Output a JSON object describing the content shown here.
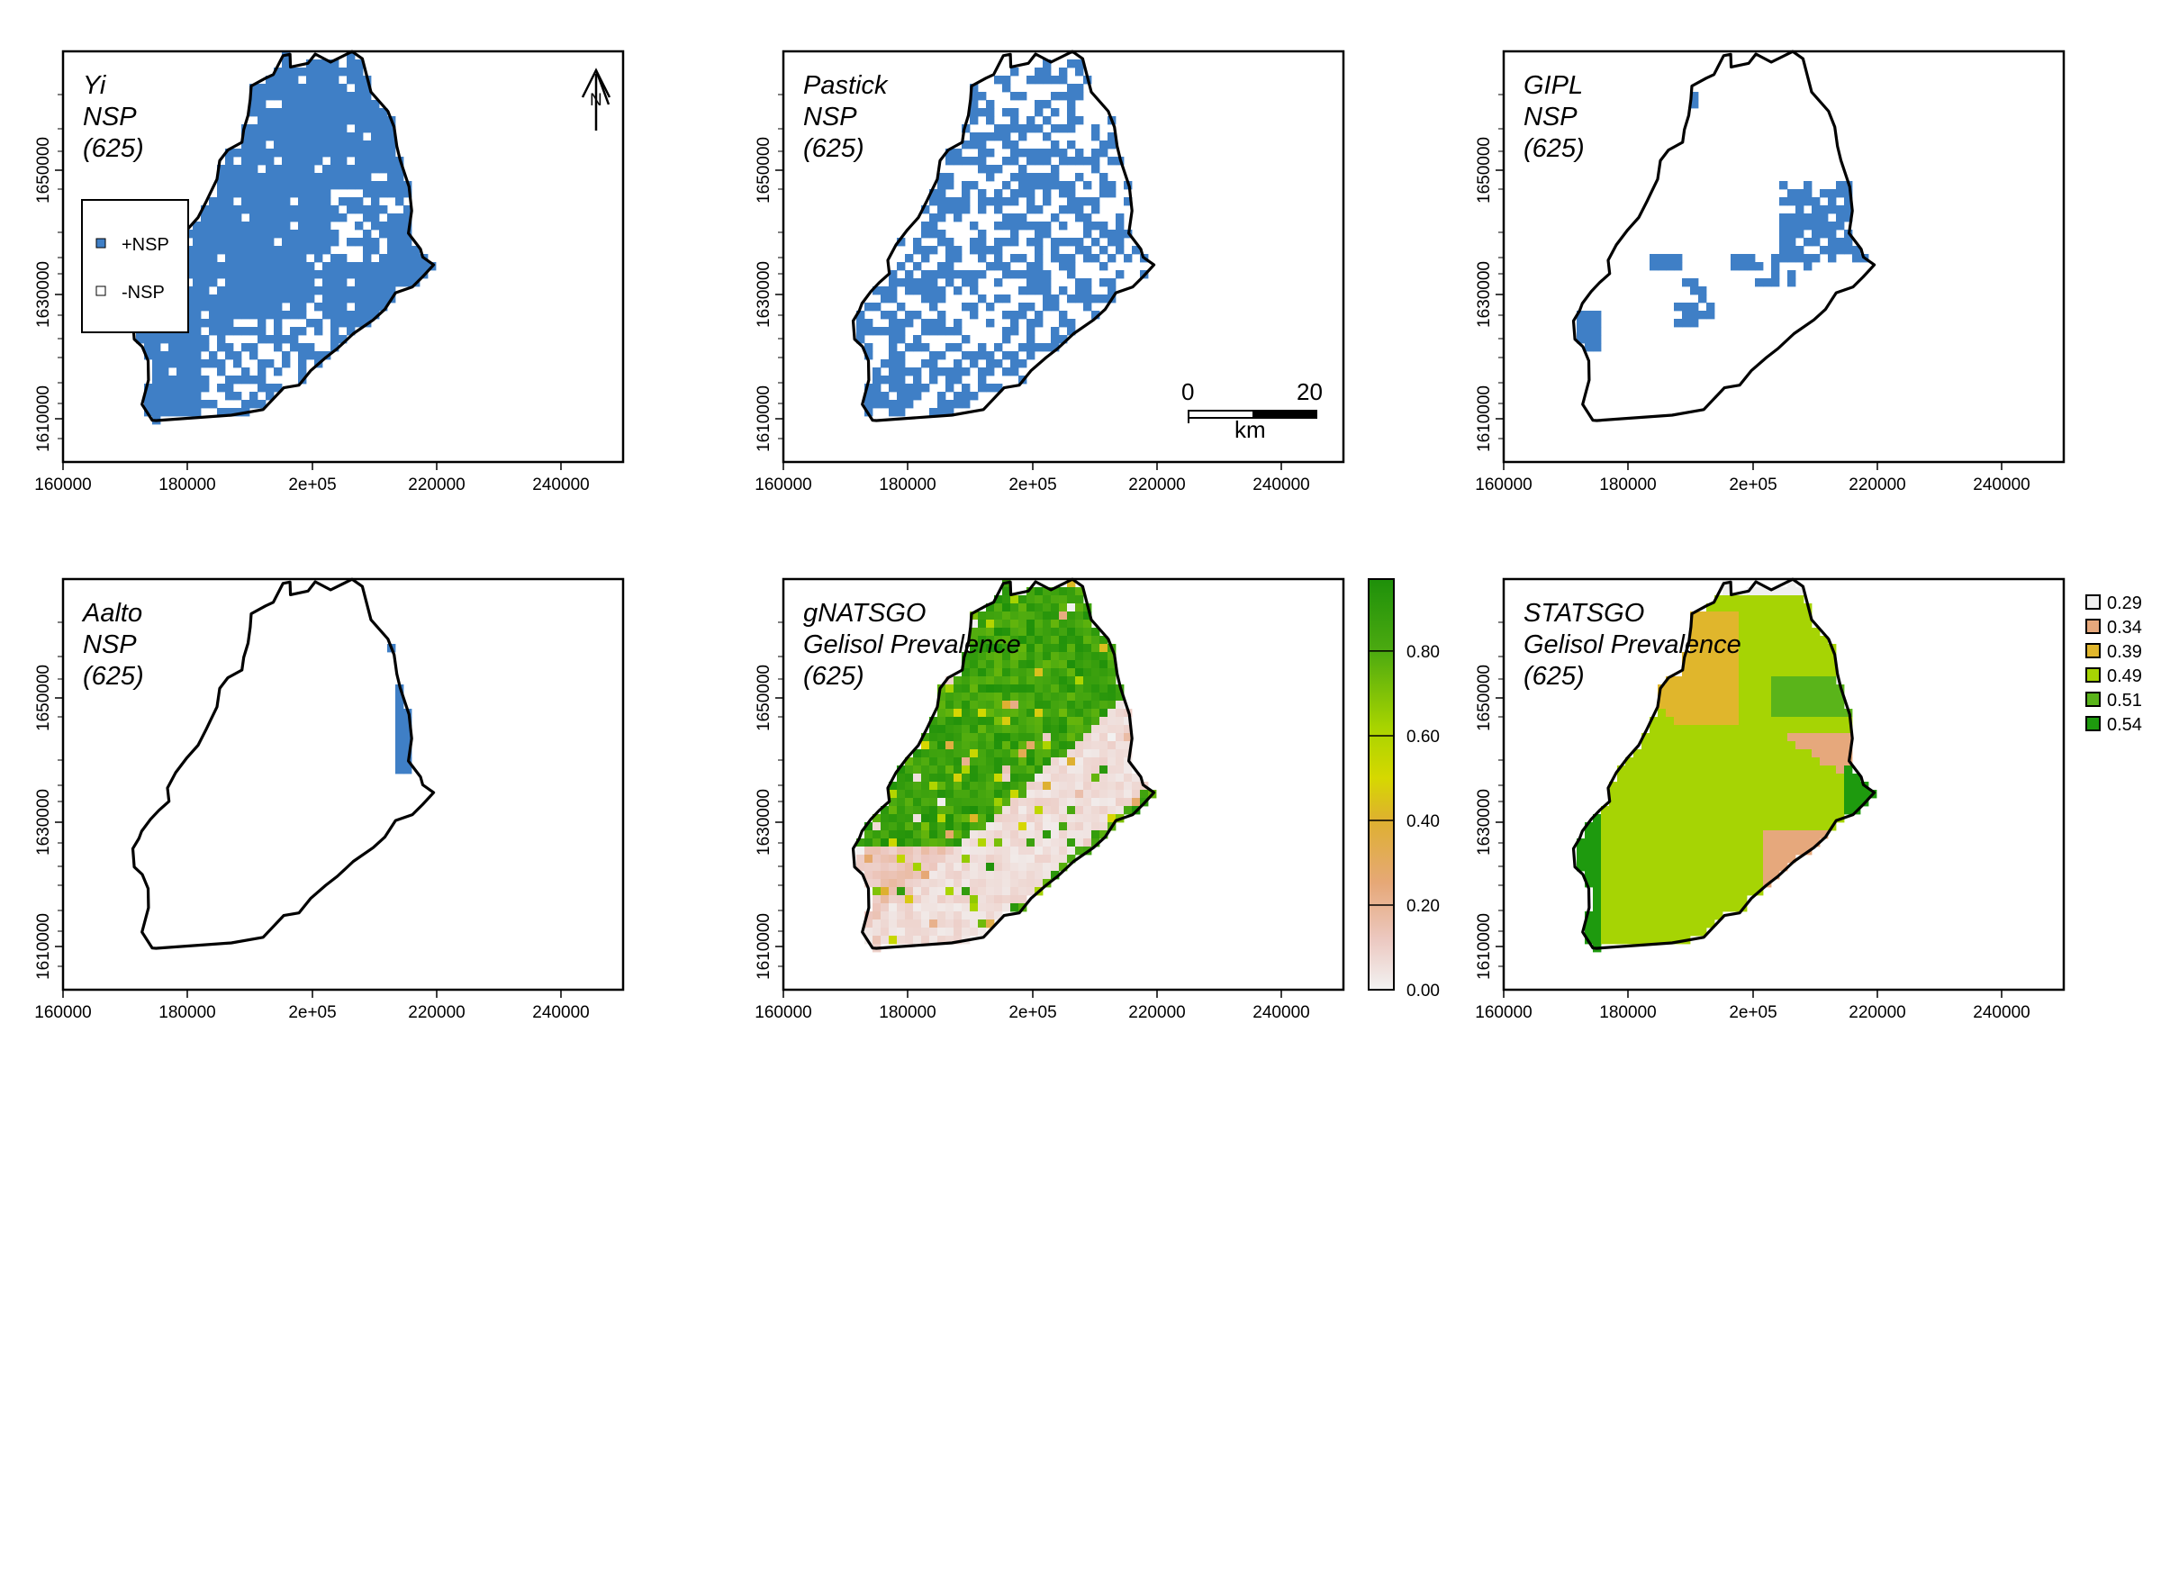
{
  "colors": {
    "nsp_positive": "#3f7fc6",
    "nsp_negative": "#ffffff",
    "boundary": "#000000",
    "frame": "#000000"
  },
  "axes": {
    "x_ticks": [
      "160000",
      "180000",
      "2e+05",
      "220000",
      "240000"
    ],
    "y_ticks": [
      "1610000",
      "1630000",
      "1650000"
    ]
  },
  "panels": [
    {
      "id": "yi",
      "title": [
        "Yi",
        "NSP",
        "(625)"
      ],
      "type": "binary",
      "fraction": 0.86
    },
    {
      "id": "pastick",
      "title": [
        "Pastick",
        "NSP",
        "(625)"
      ],
      "type": "binary",
      "fraction": 0.55
    },
    {
      "id": "gipl",
      "title": [
        "GIPL",
        "NSP",
        "(625)"
      ],
      "type": "binary",
      "fraction": 0.12
    },
    {
      "id": "aalto",
      "title": [
        "Aalto",
        "NSP",
        "(625)"
      ],
      "type": "binary",
      "fraction": 0.03
    },
    {
      "id": "gnatsgo",
      "title": [
        "gNATSGO",
        "Gelisol Prevalence",
        "(625)"
      ],
      "type": "continuous"
    },
    {
      "id": "statsgo",
      "title": [
        "STATSGO",
        "Gelisol Prevalence",
        "(625)"
      ],
      "type": "categorical"
    }
  ],
  "nsp_legend": {
    "items": [
      {
        "label": "+NSP",
        "color": "#3f7fc6"
      },
      {
        "label": "-NSP",
        "color": "#ffffff"
      }
    ]
  },
  "north_arrow": {
    "label": "N"
  },
  "scale_bar": {
    "start_label": "0",
    "end_label": "20",
    "unit": "km"
  },
  "colorbar": {
    "ticks": [
      "0.00",
      "0.20",
      "0.40",
      "0.60",
      "0.80"
    ],
    "tick_values": [
      0.0,
      0.2,
      0.4,
      0.6,
      0.8
    ],
    "range": [
      0,
      0.97
    ],
    "stops": [
      {
        "v": 0.0,
        "color": "#f2f2f2"
      },
      {
        "v": 0.12,
        "color": "#ecc8c0"
      },
      {
        "v": 0.25,
        "color": "#e6a878"
      },
      {
        "v": 0.4,
        "color": "#deb030"
      },
      {
        "v": 0.5,
        "color": "#d6d800"
      },
      {
        "v": 0.62,
        "color": "#a8d400"
      },
      {
        "v": 0.8,
        "color": "#4caa10"
      },
      {
        "v": 0.97,
        "color": "#1e900a"
      }
    ]
  },
  "statsgo_legend": {
    "items": [
      {
        "label": "0.29",
        "color": "#f0f0f0"
      },
      {
        "label": "0.34",
        "color": "#e6a87c"
      },
      {
        "label": "0.39",
        "color": "#e0b62c"
      },
      {
        "label": "0.49",
        "color": "#a6d404"
      },
      {
        "label": "0.51",
        "color": "#5ab41a"
      },
      {
        "label": "0.54",
        "color": "#1e9a0e"
      }
    ]
  }
}
